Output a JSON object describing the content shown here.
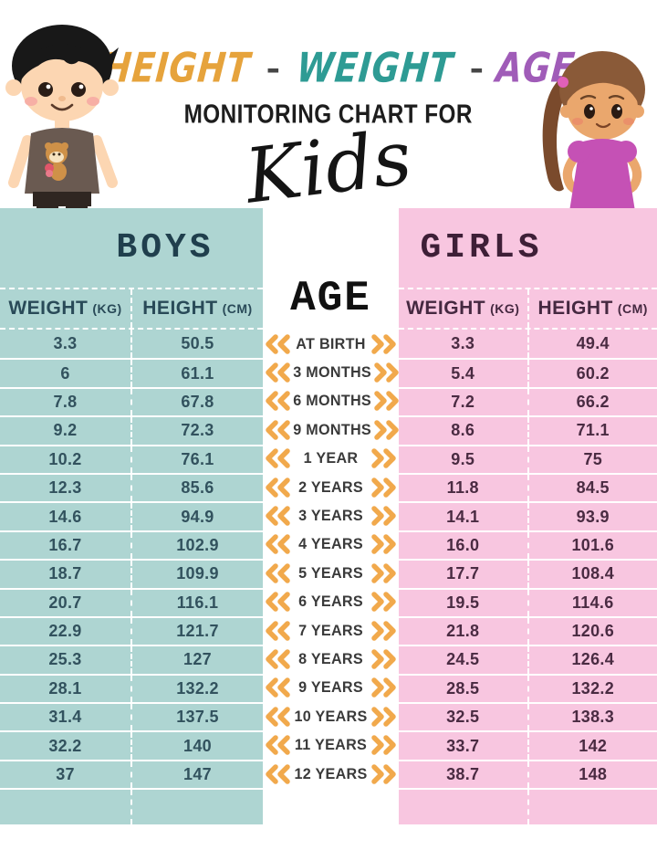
{
  "title": {
    "words": [
      {
        "text": "HEIGHT",
        "color": "#e6a33c"
      },
      {
        "text": "WEIGHT",
        "color": "#2e9b94"
      },
      {
        "text": "AGE",
        "color": "#a05cb8"
      }
    ],
    "separator": "-",
    "subtitle": "MONITORING CHART FOR",
    "script_word": "Kids"
  },
  "age_header": "AGE",
  "ages": [
    "AT BIRTH",
    "3 MONTHS",
    "6 MONTHS",
    "9 MONTHS",
    "1 YEAR",
    "2 YEARS",
    "3 YEARS",
    "4 YEARS",
    "5 YEARS",
    "6 YEARS",
    "7 YEARS",
    "8 YEARS",
    "9 YEARS",
    "10 YEARS",
    "11 YEARS",
    "12 YEARS"
  ],
  "boys": {
    "title": "BOYS",
    "weight_header": "WEIGHT",
    "weight_unit": "(KG)",
    "height_header": "HEIGHT",
    "height_unit": "(CM)",
    "weights": [
      "3.3",
      "6",
      "7.8",
      "9.2",
      "10.2",
      "12.3",
      "14.6",
      "16.7",
      "18.7",
      "20.7",
      "22.9",
      "25.3",
      "28.1",
      "31.4",
      "32.2",
      "37"
    ],
    "heights": [
      "50.5",
      "61.1",
      "67.8",
      "72.3",
      "76.1",
      "85.6",
      "94.9",
      "102.9",
      "109.9",
      "116.1",
      "121.7",
      "127",
      "132.2",
      "137.5",
      "140",
      "147"
    ]
  },
  "girls": {
    "title": "GIRLS",
    "weight_header": "WEIGHT",
    "weight_unit": "(KG)",
    "height_header": "HEIGHT",
    "height_unit": "(CM)",
    "weights": [
      "3.3",
      "5.4",
      "7.2",
      "8.6",
      "9.5",
      "11.8",
      "14.1",
      "16.0",
      "17.7",
      "19.5",
      "21.8",
      "24.5",
      "28.5",
      "32.5",
      "33.7",
      "38.7"
    ],
    "heights": [
      "49.4",
      "60.2",
      "66.2",
      "71.1",
      "75",
      "84.5",
      "93.9",
      "101.6",
      "108.4",
      "114.6",
      "120.6",
      "126.4",
      "132.2",
      "138.3",
      "142",
      "148"
    ]
  },
  "colors": {
    "boys_bg": "#aed5d2",
    "girls_bg": "#f8c6e0",
    "chevron": "#f1a94c",
    "boys_text": "#32525e",
    "girls_text": "#4a2b42",
    "title_height": "#e6a33c",
    "title_weight": "#2e9b94",
    "title_age": "#a05cb8"
  },
  "chart_data": {
    "type": "table",
    "title": "HEIGHT - WEIGHT - AGE MONITORING CHART FOR Kids",
    "categories": [
      "AT BIRTH",
      "3 MONTHS",
      "6 MONTHS",
      "9 MONTHS",
      "1 YEAR",
      "2 YEARS",
      "3 YEARS",
      "4 YEARS",
      "5 YEARS",
      "6 YEARS",
      "7 YEARS",
      "8 YEARS",
      "9 YEARS",
      "10 YEARS",
      "11 YEARS",
      "12 YEARS"
    ],
    "series": [
      {
        "name": "Boys Weight (kg)",
        "values": [
          3.3,
          6,
          7.8,
          9.2,
          10.2,
          12.3,
          14.6,
          16.7,
          18.7,
          20.7,
          22.9,
          25.3,
          28.1,
          31.4,
          32.2,
          37
        ]
      },
      {
        "name": "Boys Height (cm)",
        "values": [
          50.5,
          61.1,
          67.8,
          72.3,
          76.1,
          85.6,
          94.9,
          102.9,
          109.9,
          116.1,
          121.7,
          127,
          132.2,
          137.5,
          140,
          147
        ]
      },
      {
        "name": "Girls Weight (kg)",
        "values": [
          3.3,
          5.4,
          7.2,
          8.6,
          9.5,
          11.8,
          14.1,
          16.0,
          17.7,
          19.5,
          21.8,
          24.5,
          28.5,
          32.5,
          33.7,
          38.7
        ]
      },
      {
        "name": "Girls Height (cm)",
        "values": [
          49.4,
          60.2,
          66.2,
          71.1,
          75,
          84.5,
          93.9,
          101.6,
          108.4,
          114.6,
          120.6,
          126.4,
          132.2,
          138.3,
          142,
          148
        ]
      }
    ]
  }
}
